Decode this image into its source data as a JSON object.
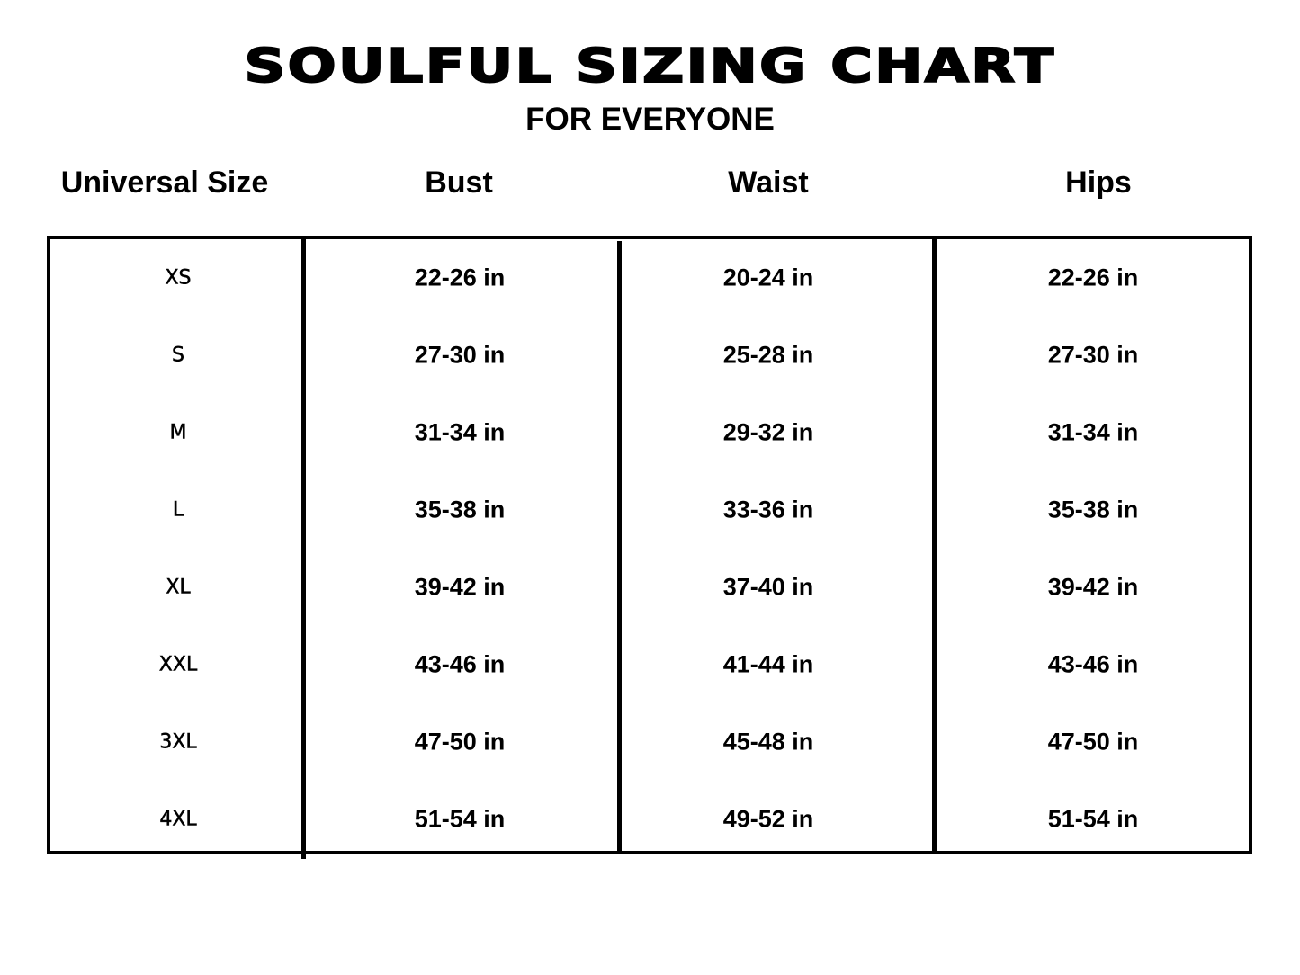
{
  "title": "SOULFUL SIZING CHART",
  "subtitle": "FOR EVERYONE",
  "headers": [
    "Universal Size",
    "Bust",
    "Waist",
    "Hips"
  ],
  "rows": [
    {
      "size": "XS",
      "bust": "22-26 in",
      "waist": "20-24 in",
      "hips": "22-26 in"
    },
    {
      "size": "S",
      "bust": "27-30 in",
      "waist": "25-28 in",
      "hips": "27-30 in"
    },
    {
      "size": "M",
      "bust": "31-34 in",
      "waist": "29-32 in",
      "hips": "31-34 in"
    },
    {
      "size": "L",
      "bust": "35-38 in",
      "waist": "33-36 in",
      "hips": "35-38 in"
    },
    {
      "size": "XL",
      "bust": "39-42 in",
      "waist": "37-40 in",
      "hips": "39-42 in"
    },
    {
      "size": "XXL",
      "bust": "43-46 in",
      "waist": "41-44 in",
      "hips": "43-46 in"
    },
    {
      "size": "3XL",
      "bust": "47-50 in",
      "waist": "45-48 in",
      "hips": "47-50 in"
    },
    {
      "size": "4XL",
      "bust": "51-54 in",
      "waist": "49-52 in",
      "hips": "51-54 in"
    }
  ]
}
